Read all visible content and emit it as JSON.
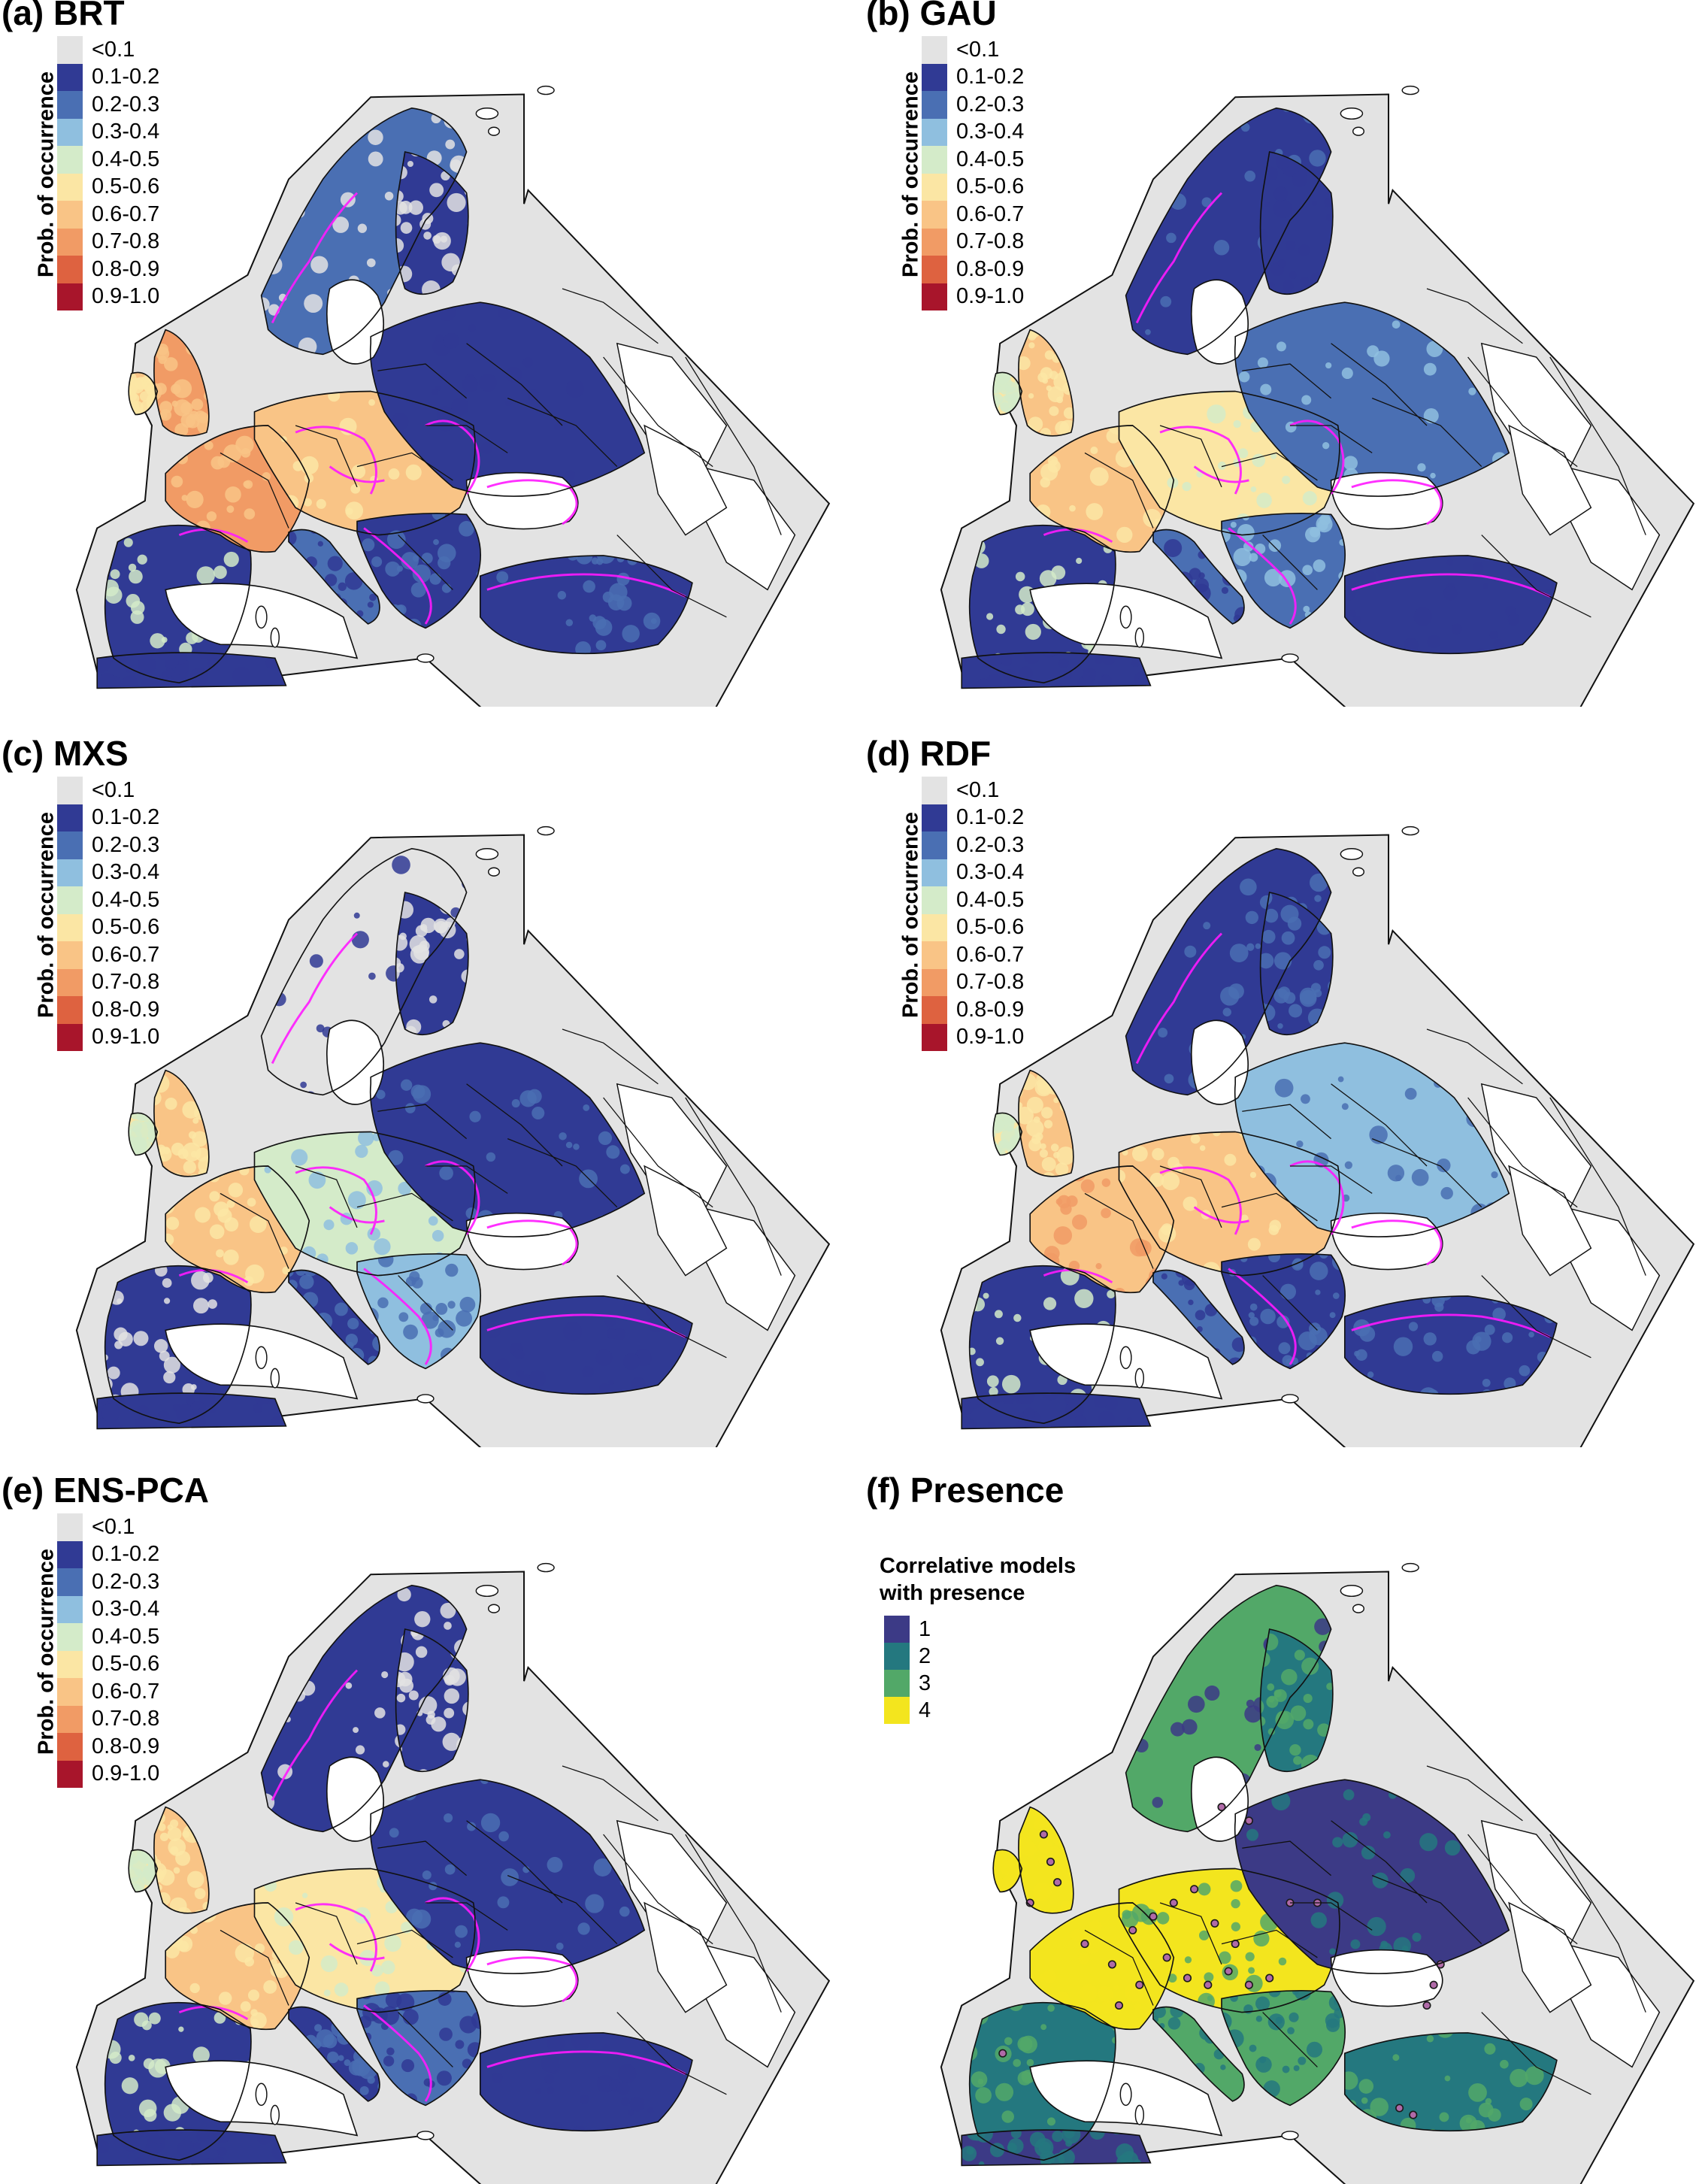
{
  "legend": {
    "axis_label": "Prob. of occurrence",
    "classes": [
      {
        "label": "<0.1",
        "color": "#e3e3e3"
      },
      {
        "label": "0.1-0.2",
        "color": "#303a94"
      },
      {
        "label": "0.2-0.3",
        "color": "#4a6fb3"
      },
      {
        "label": "0.3-0.4",
        "color": "#8fbfdf"
      },
      {
        "label": "0.4-0.5",
        "color": "#d4ebc9"
      },
      {
        "label": "0.5-0.6",
        "color": "#fbe6a4"
      },
      {
        "label": "0.6-0.7",
        "color": "#f9c486"
      },
      {
        "label": "0.7-0.8",
        "color": "#f19b65"
      },
      {
        "label": "0.8-0.9",
        "color": "#de6240"
      },
      {
        "label": "0.9-1.0",
        "color": "#a8152b"
      }
    ]
  },
  "panels": [
    {
      "title": "(a) BRT"
    },
    {
      "title": "(b) GAU"
    },
    {
      "title": "(c) MXS"
    },
    {
      "title": "(d) RDF"
    },
    {
      "title": "(e) ENS-PCA"
    },
    {
      "title": "(f) Presence"
    }
  ],
  "presence_legend": {
    "title_line1": "Correlative models",
    "title_line2": "with presence",
    "classes": [
      {
        "label": "1",
        "color": "#3c3a86"
      },
      {
        "label": "2",
        "color": "#24787f"
      },
      {
        "label": "3",
        "color": "#52a868"
      },
      {
        "label": "4",
        "color": "#f3e51e"
      }
    ]
  },
  "colors": {
    "background_domain": "#e3e3e3",
    "sea": "#ffffff",
    "outline": "#111111",
    "threshold_contour": "#ff19ff",
    "presence_point": "#b06aa8"
  }
}
